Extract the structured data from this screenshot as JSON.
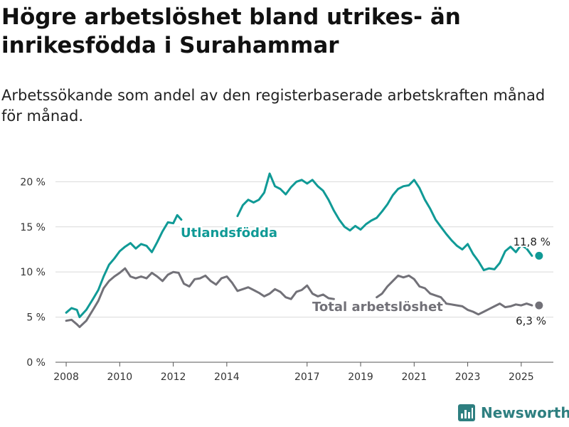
{
  "title": "Högre arbetslöshet bland utrikes- än inrikesfödda i Surahammar",
  "subtitle": "Arbetssökande som andel av den registerbaserade arbetskraften månad för månad.",
  "brand": {
    "name": "Newsworthy",
    "icon": "bar-chart-icon"
  },
  "chart_data": {
    "type": "line",
    "title": "Högre arbetslöshet bland utrikes- än inrikesfödda i Surahammar",
    "subtitle": "Arbetssökande som andel av den registerbaserade arbetskraften månad för månad.",
    "xlabel": "",
    "ylabel": "",
    "y_unit": "%",
    "ylim": [
      0,
      22
    ],
    "xlim": [
      2007.6,
      2026.2
    ],
    "x_tick_labels": [
      "2008",
      "2010",
      "2012",
      "2014",
      "2017",
      "2019",
      "2021",
      "2023",
      "2025"
    ],
    "x_ticks": [
      2008,
      2010,
      2012,
      2014,
      2017,
      2019,
      2021,
      2023,
      2025
    ],
    "y_ticks": [
      0,
      5,
      10,
      15,
      20
    ],
    "y_tick_labels": [
      "0 %",
      "5 %",
      "10 %",
      "15 %",
      "20 %"
    ],
    "grid": true,
    "legend": "inline labels",
    "series": [
      {
        "name": "Utlandsfödda",
        "color": "#109a96",
        "end_label": "11,8 %",
        "points": [
          [
            2008.0,
            5.5
          ],
          [
            2008.2,
            6.0
          ],
          [
            2008.4,
            5.8
          ],
          [
            2008.5,
            5.0
          ],
          [
            2008.75,
            5.8
          ],
          [
            2009.0,
            7.0
          ],
          [
            2009.2,
            8.0
          ],
          [
            2009.4,
            9.5
          ],
          [
            2009.6,
            10.8
          ],
          [
            2009.8,
            11.5
          ],
          [
            2010.0,
            12.3
          ],
          [
            2010.2,
            12.8
          ],
          [
            2010.4,
            13.2
          ],
          [
            2010.6,
            12.6
          ],
          [
            2010.8,
            13.1
          ],
          [
            2011.0,
            12.9
          ],
          [
            2011.2,
            12.2
          ],
          [
            2011.4,
            13.3
          ],
          [
            2011.6,
            14.5
          ],
          [
            2011.8,
            15.5
          ],
          [
            2012.0,
            15.4
          ],
          [
            2012.15,
            16.3
          ],
          [
            2012.3,
            15.8
          ],
          [
            null,
            null
          ],
          [
            2014.4,
            16.2
          ],
          [
            2014.6,
            17.4
          ],
          [
            2014.8,
            18.0
          ],
          [
            2015.0,
            17.7
          ],
          [
            2015.2,
            18.0
          ],
          [
            2015.4,
            18.8
          ],
          [
            2015.6,
            20.9
          ],
          [
            2015.8,
            19.5
          ],
          [
            2016.0,
            19.2
          ],
          [
            2016.2,
            18.6
          ],
          [
            2016.4,
            19.4
          ],
          [
            2016.6,
            20.0
          ],
          [
            2016.8,
            20.2
          ],
          [
            2017.0,
            19.8
          ],
          [
            2017.2,
            20.2
          ],
          [
            2017.4,
            19.5
          ],
          [
            2017.6,
            19.0
          ],
          [
            2017.8,
            18.0
          ],
          [
            2018.0,
            16.8
          ],
          [
            2018.2,
            15.8
          ],
          [
            2018.4,
            15.0
          ],
          [
            2018.6,
            14.6
          ],
          [
            2018.8,
            15.1
          ],
          [
            2019.0,
            14.7
          ],
          [
            2019.2,
            15.3
          ],
          [
            2019.4,
            15.7
          ],
          [
            2019.6,
            16.0
          ],
          [
            2019.8,
            16.7
          ],
          [
            2020.0,
            17.5
          ],
          [
            2020.2,
            18.5
          ],
          [
            2020.4,
            19.2
          ],
          [
            2020.6,
            19.5
          ],
          [
            2020.8,
            19.6
          ],
          [
            2021.0,
            20.2
          ],
          [
            2021.2,
            19.3
          ],
          [
            2021.4,
            18.0
          ],
          [
            2021.6,
            17.0
          ],
          [
            2021.8,
            15.8
          ],
          [
            2022.0,
            15.0
          ],
          [
            2022.2,
            14.2
          ],
          [
            2022.4,
            13.5
          ],
          [
            2022.6,
            12.9
          ],
          [
            2022.8,
            12.5
          ],
          [
            2023.0,
            13.1
          ],
          [
            2023.2,
            12.0
          ],
          [
            2023.4,
            11.2
          ],
          [
            2023.6,
            10.2
          ],
          [
            2023.8,
            10.4
          ],
          [
            2024.0,
            10.3
          ],
          [
            2024.2,
            11.0
          ],
          [
            2024.4,
            12.3
          ],
          [
            2024.6,
            12.8
          ],
          [
            2024.8,
            12.2
          ],
          [
            2025.0,
            13.0
          ],
          [
            2025.2,
            12.6
          ],
          [
            2025.4,
            11.8
          ]
        ]
      },
      {
        "name": "Total arbetslöshet",
        "color": "#727178",
        "end_label": "6,3 %",
        "points": [
          [
            2008.0,
            4.6
          ],
          [
            2008.2,
            4.7
          ],
          [
            2008.4,
            4.2
          ],
          [
            2008.5,
            3.9
          ],
          [
            2008.75,
            4.6
          ],
          [
            2009.0,
            5.8
          ],
          [
            2009.2,
            6.8
          ],
          [
            2009.4,
            8.2
          ],
          [
            2009.6,
            9.0
          ],
          [
            2009.8,
            9.5
          ],
          [
            2010.0,
            9.9
          ],
          [
            2010.2,
            10.4
          ],
          [
            2010.4,
            9.5
          ],
          [
            2010.6,
            9.3
          ],
          [
            2010.8,
            9.5
          ],
          [
            2011.0,
            9.3
          ],
          [
            2011.2,
            9.9
          ],
          [
            2011.4,
            9.5
          ],
          [
            2011.6,
            9.0
          ],
          [
            2011.8,
            9.7
          ],
          [
            2012.0,
            10.0
          ],
          [
            2012.2,
            9.9
          ],
          [
            2012.4,
            8.7
          ],
          [
            2012.6,
            8.4
          ],
          [
            2012.8,
            9.2
          ],
          [
            2013.0,
            9.3
          ],
          [
            2013.2,
            9.6
          ],
          [
            2013.4,
            9.0
          ],
          [
            2013.6,
            8.6
          ],
          [
            2013.8,
            9.3
          ],
          [
            2014.0,
            9.5
          ],
          [
            2014.2,
            8.8
          ],
          [
            2014.4,
            7.9
          ],
          [
            2014.6,
            8.1
          ],
          [
            2014.8,
            8.3
          ],
          [
            2015.0,
            8.0
          ],
          [
            2015.2,
            7.7
          ],
          [
            2015.4,
            7.3
          ],
          [
            2015.6,
            7.6
          ],
          [
            2015.8,
            8.1
          ],
          [
            2016.0,
            7.8
          ],
          [
            2016.2,
            7.2
          ],
          [
            2016.4,
            7.0
          ],
          [
            2016.6,
            7.8
          ],
          [
            2016.8,
            8.0
          ],
          [
            2017.0,
            8.5
          ],
          [
            2017.2,
            7.6
          ],
          [
            2017.4,
            7.3
          ],
          [
            2017.6,
            7.5
          ],
          [
            2017.8,
            7.1
          ],
          [
            2018.0,
            7.0
          ],
          [
            null,
            null
          ],
          [
            2019.6,
            7.2
          ],
          [
            2019.8,
            7.6
          ],
          [
            2020.0,
            8.4
          ],
          [
            2020.2,
            9.0
          ],
          [
            2020.4,
            9.6
          ],
          [
            2020.6,
            9.4
          ],
          [
            2020.8,
            9.6
          ],
          [
            2021.0,
            9.2
          ],
          [
            2021.2,
            8.4
          ],
          [
            2021.4,
            8.2
          ],
          [
            2021.6,
            7.6
          ],
          [
            2021.8,
            7.4
          ],
          [
            2022.0,
            7.2
          ],
          [
            2022.2,
            6.5
          ],
          [
            2022.4,
            6.4
          ],
          [
            2022.6,
            6.3
          ],
          [
            2022.8,
            6.2
          ],
          [
            2023.0,
            5.8
          ],
          [
            2023.2,
            5.6
          ],
          [
            2023.4,
            5.3
          ],
          [
            2023.6,
            5.6
          ],
          [
            2023.8,
            5.9
          ],
          [
            2024.0,
            6.2
          ],
          [
            2024.2,
            6.5
          ],
          [
            2024.4,
            6.1
          ],
          [
            2024.6,
            6.2
          ],
          [
            2024.8,
            6.4
          ],
          [
            2025.0,
            6.3
          ],
          [
            2025.2,
            6.5
          ],
          [
            2025.4,
            6.3
          ]
        ]
      }
    ]
  }
}
